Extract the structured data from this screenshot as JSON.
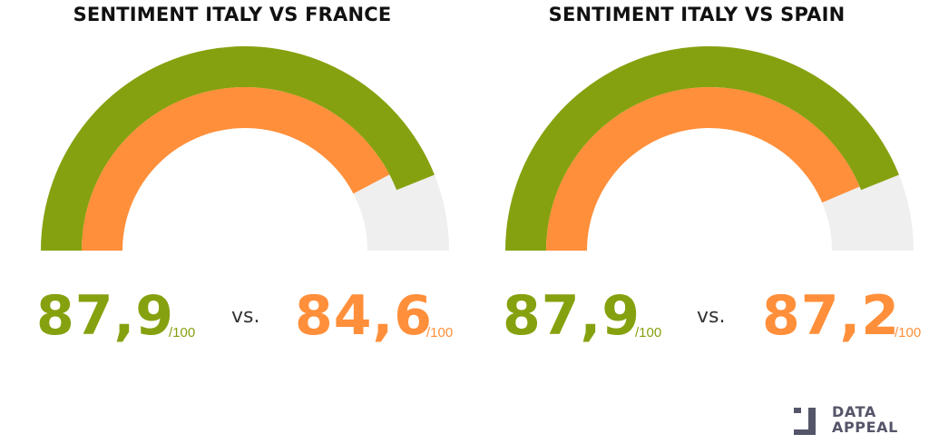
{
  "chart_data": [
    {
      "type": "gauge",
      "title": "SENTIMENT ITALY VS FRANCE",
      "scale_max": 100,
      "series": [
        {
          "name": "Italy",
          "value": 87.9,
          "label": "87,9",
          "unit_label": "/100",
          "color": "#86a10f"
        },
        {
          "name": "France",
          "value": 84.6,
          "label": "84,6",
          "unit_label": "/100",
          "color": "#ff8f3a"
        }
      ],
      "vs_label": "vs.",
      "track_color": "#efefef"
    },
    {
      "type": "gauge",
      "title": "SENTIMENT ITALY VS SPAIN",
      "scale_max": 100,
      "series": [
        {
          "name": "Italy",
          "value": 87.9,
          "label": "87,9",
          "unit_label": "/100",
          "color": "#86a10f"
        },
        {
          "name": "Spain",
          "value": 87.2,
          "label": "87,2",
          "unit_label": "/100",
          "color": "#ff8f3a"
        }
      ],
      "vs_label": "vs.",
      "track_color": "#efefef"
    }
  ],
  "logo": {
    "line1": "DATA",
    "line2": "APPEAL",
    "color": "#55556a"
  }
}
